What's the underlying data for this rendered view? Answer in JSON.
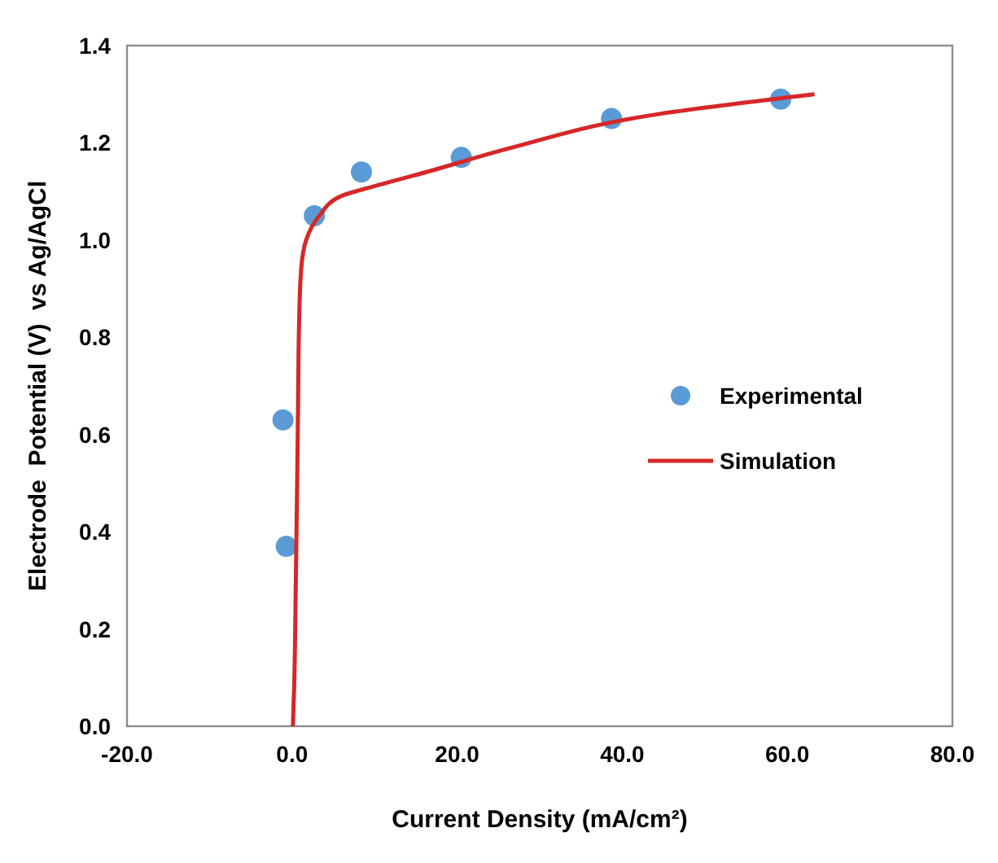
{
  "chart_data": {
    "type": "scatter",
    "xlabel": "Current Density (mA/cm²)",
    "ylabel": "Electrode  Potential (V)  vs Ag/AgCl",
    "xlim": [
      -20,
      80
    ],
    "ylim": [
      0,
      1.4
    ],
    "xticks": [
      {
        "value": -20,
        "label": "-20.0"
      },
      {
        "value": 0,
        "label": "0.0"
      },
      {
        "value": 20,
        "label": "20.0"
      },
      {
        "value": 40,
        "label": "40.0"
      },
      {
        "value": 60,
        "label": "60.0"
      },
      {
        "value": 80,
        "label": "80.0"
      }
    ],
    "yticks": [
      {
        "value": 0,
        "label": "0.0"
      },
      {
        "value": 0.2,
        "label": "0.2"
      },
      {
        "value": 0.4,
        "label": "0.4"
      },
      {
        "value": 0.6,
        "label": "0.6"
      },
      {
        "value": 0.8,
        "label": "0.8"
      },
      {
        "value": 1.0,
        "label": "1.0"
      },
      {
        "value": 1.2,
        "label": "1.2"
      },
      {
        "value": 1.4,
        "label": "1.4"
      }
    ],
    "grid": false,
    "legend": "right",
    "series": [
      {
        "name": "Experimental",
        "marker": "circle",
        "color": "#5b9bd5",
        "x": [
          -1.1,
          -0.7,
          2.7,
          8.4,
          20.5,
          38.7,
          59.2
        ],
        "values": [
          0.63,
          0.37,
          1.05,
          1.14,
          1.17,
          1.25,
          1.29
        ]
      },
      {
        "name": "Simulation",
        "type": "line",
        "line_style": "solid",
        "color": "#d62728",
        "x": [
          0.1,
          0.25,
          0.45,
          0.7,
          0.85,
          1.1,
          1.7,
          3.3,
          5.9,
          9.8,
          16.3,
          26.6,
          44.7,
          63.3
        ],
        "values": [
          0,
          0.08,
          0.29,
          0.62,
          0.83,
          0.94,
          1.0,
          1.05,
          1.09,
          1.11,
          1.14,
          1.19,
          1.26,
          1.3
        ]
      }
    ]
  }
}
